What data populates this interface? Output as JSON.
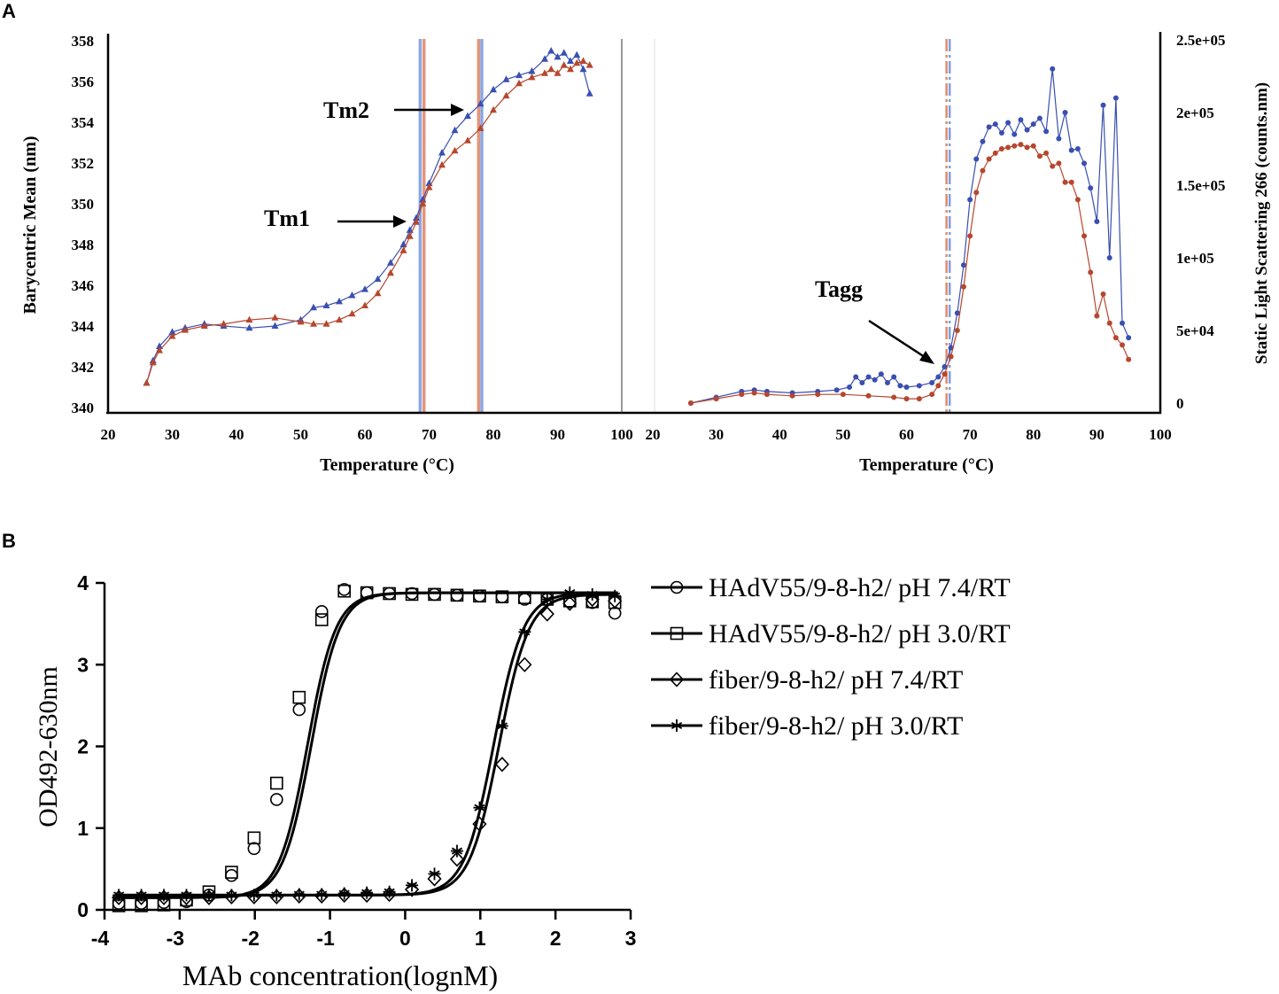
{
  "panel_a": {
    "label": "A",
    "annotations": {
      "tm1": "Tm1",
      "tm2": "Tm2",
      "tagg": "Tagg"
    }
  },
  "panel_b": {
    "label": "B"
  },
  "colors": {
    "blue": "#3a4fb0",
    "red": "#b6472e",
    "tm_blue": "#7f9ee0",
    "tm_orange": "#e08a6c",
    "black": "#000000"
  },
  "chart_data": [
    {
      "id": "barycentric",
      "type": "line",
      "title": "",
      "xlabel": "Temperature (°C)",
      "ylabel": "Barycentric Mean (nm)",
      "xlim": [
        20,
        100
      ],
      "ylim": [
        340,
        358
      ],
      "xticks": [
        20,
        30,
        40,
        50,
        60,
        70,
        80,
        90,
        100
      ],
      "yticks": [
        340,
        342,
        344,
        346,
        348,
        350,
        352,
        354,
        356,
        358
      ],
      "vlines": [
        68.6,
        69.2,
        77.7,
        78.2
      ],
      "series": [
        {
          "name": "blue",
          "marker": "triangle",
          "x": [
            26,
            27,
            28,
            30,
            32,
            35,
            38,
            42,
            46,
            50,
            52,
            54,
            56,
            58,
            60,
            62,
            64,
            66,
            67,
            68,
            69,
            70,
            72,
            74,
            76,
            78,
            80,
            82,
            84,
            86,
            88,
            89,
            90,
            91,
            92,
            93,
            94,
            95
          ],
          "y": [
            341.2,
            342.3,
            343.0,
            343.7,
            343.9,
            344.1,
            344.0,
            343.9,
            344.0,
            344.3,
            344.9,
            345.0,
            345.2,
            345.5,
            345.8,
            346.3,
            347.1,
            348.0,
            348.7,
            349.3,
            350.2,
            351.0,
            352.5,
            353.6,
            354.3,
            354.9,
            355.6,
            356.1,
            356.3,
            356.5,
            357.1,
            357.5,
            357.2,
            357.4,
            357.0,
            357.3,
            356.6,
            355.4
          ]
        },
        {
          "name": "red",
          "marker": "triangle",
          "x": [
            26,
            27,
            28,
            30,
            32,
            35,
            38,
            42,
            46,
            50,
            52,
            54,
            56,
            58,
            60,
            62,
            64,
            66,
            67,
            68,
            69,
            70,
            72,
            74,
            76,
            78,
            80,
            82,
            84,
            86,
            88,
            89,
            90,
            91,
            92,
            93,
            94,
            95
          ],
          "y": [
            341.2,
            342.2,
            342.8,
            343.5,
            343.8,
            344.0,
            344.1,
            344.3,
            344.4,
            344.2,
            344.1,
            344.1,
            344.3,
            344.6,
            345.0,
            345.6,
            346.6,
            347.7,
            348.4,
            349.1,
            350.0,
            350.8,
            351.9,
            352.6,
            353.1,
            353.7,
            354.6,
            355.3,
            355.9,
            356.2,
            356.4,
            356.6,
            356.4,
            356.8,
            356.6,
            356.9,
            357.0,
            356.8
          ]
        }
      ]
    },
    {
      "id": "sls",
      "type": "line",
      "title": "",
      "xlabel": "Temperature (°C)",
      "ylabel": "Static Light Scattering 266 (counts.nm)",
      "xlim": [
        20,
        100
      ],
      "ylim": [
        -5000,
        250000
      ],
      "xticks": [
        20,
        30,
        40,
        50,
        60,
        70,
        80,
        90,
        100
      ],
      "ytick_values": [
        0,
        50000,
        100000,
        150000,
        200000,
        250000
      ],
      "ytick_labels": [
        "0",
        "5e+04",
        "1e+05",
        "1.5e+05",
        "2e+05",
        "2.5e+05"
      ],
      "vlines": [
        66.3,
        66.8
      ],
      "series": [
        {
          "name": "blue",
          "marker": "circle",
          "x": [
            26,
            30,
            34,
            36,
            38,
            42,
            46,
            49,
            51,
            52,
            53,
            54,
            55,
            56,
            57,
            58,
            59,
            60,
            62,
            64,
            65,
            66,
            67,
            68,
            69,
            70,
            71,
            72,
            73,
            74,
            75,
            76,
            77,
            78,
            79,
            80,
            81,
            82,
            83,
            84,
            85,
            86,
            87,
            88,
            89,
            90,
            91,
            92,
            93,
            94,
            95
          ],
          "y": [
            0,
            4000,
            8000,
            9000,
            8000,
            7000,
            8000,
            9000,
            11000,
            18000,
            14000,
            18000,
            16000,
            20000,
            14000,
            18000,
            12000,
            11000,
            12000,
            14000,
            18000,
            25000,
            38000,
            62000,
            95000,
            140000,
            168000,
            180000,
            190000,
            192000,
            186000,
            193000,
            185000,
            195000,
            188000,
            192000,
            196000,
            187000,
            230000,
            182000,
            200000,
            174000,
            175000,
            165000,
            148000,
            125000,
            205000,
            100000,
            210000,
            55000,
            45000
          ]
        },
        {
          "name": "red",
          "marker": "circle",
          "x": [
            26,
            30,
            34,
            36,
            38,
            42,
            46,
            50,
            54,
            58,
            60,
            62,
            64,
            65,
            66,
            67,
            68,
            69,
            70,
            71,
            72,
            73,
            74,
            75,
            76,
            77,
            78,
            79,
            80,
            81,
            82,
            83,
            84,
            85,
            86,
            87,
            88,
            89,
            90,
            91,
            92,
            93,
            94,
            95
          ],
          "y": [
            0,
            3000,
            6000,
            7000,
            6000,
            5000,
            6000,
            6000,
            5000,
            4000,
            3000,
            3000,
            6000,
            12000,
            20000,
            32000,
            50000,
            80000,
            115000,
            145000,
            160000,
            168000,
            172000,
            175000,
            176000,
            177000,
            178000,
            176000,
            177000,
            170000,
            172000,
            163000,
            165000,
            152000,
            152000,
            140000,
            115000,
            90000,
            60000,
            75000,
            55000,
            45000,
            40000,
            30000
          ]
        }
      ]
    },
    {
      "id": "elisa",
      "type": "scatter",
      "title": "",
      "xlabel": "MAb concentration(lognM)",
      "ylabel": "OD492-630nm",
      "xlim": [
        -4,
        3
      ],
      "ylim": [
        0,
        4
      ],
      "xticks": [
        -4,
        -3,
        -2,
        -1,
        0,
        1,
        2,
        3
      ],
      "yticks": [
        0,
        1,
        2,
        3,
        4
      ],
      "x": [
        -3.81,
        -3.51,
        -3.21,
        -2.91,
        -2.61,
        -2.31,
        -2.01,
        -1.71,
        -1.41,
        -1.11,
        -0.81,
        -0.51,
        -0.21,
        0.09,
        0.39,
        0.69,
        0.99,
        1.29,
        1.59,
        1.89,
        2.19,
        2.49,
        2.79
      ],
      "series": [
        {
          "name": "HAdV55/9-8-h2/ pH 7.4/RT",
          "marker": "circle",
          "ec50": -1.3,
          "bottom": 0.15,
          "top": 3.88,
          "hill": 2.3,
          "values": [
            0.08,
            0.08,
            0.09,
            0.1,
            0.18,
            0.42,
            0.75,
            1.35,
            2.45,
            3.65,
            3.92,
            3.88,
            3.87,
            3.87,
            3.86,
            3.85,
            3.84,
            3.83,
            3.8,
            3.8,
            3.77,
            3.76,
            3.63
          ]
        },
        {
          "name": "HAdV55/9-8-h2/ pH 3.0/RT",
          "marker": "square",
          "ec50": -1.25,
          "bottom": 0.15,
          "top": 3.88,
          "hill": 2.3,
          "values": [
            0.05,
            0.05,
            0.06,
            0.12,
            0.22,
            0.46,
            0.88,
            1.55,
            2.6,
            3.55,
            3.9,
            3.88,
            3.87,
            3.86,
            3.86,
            3.85,
            3.84,
            3.83,
            3.82,
            3.8,
            3.78,
            3.77,
            3.76
          ]
        },
        {
          "name": "fiber/9-8-h2/ pH 7.4/RT",
          "marker": "diamond",
          "ec50": 1.25,
          "bottom": 0.18,
          "top": 3.86,
          "hill": 2.2,
          "values": [
            0.15,
            0.15,
            0.15,
            0.15,
            0.15,
            0.16,
            0.16,
            0.16,
            0.17,
            0.17,
            0.18,
            0.18,
            0.19,
            0.25,
            0.38,
            0.62,
            1.05,
            1.78,
            3.0,
            3.62,
            3.75,
            3.8,
            3.78
          ]
        },
        {
          "name": "fiber/9-8-h2/ pH 3.0/RT",
          "marker": "star",
          "ec50": 1.18,
          "bottom": 0.18,
          "top": 3.88,
          "hill": 2.2,
          "values": [
            0.18,
            0.18,
            0.18,
            0.18,
            0.18,
            0.18,
            0.18,
            0.18,
            0.19,
            0.19,
            0.2,
            0.21,
            0.22,
            0.3,
            0.44,
            0.72,
            1.25,
            2.25,
            3.4,
            3.8,
            3.88,
            3.86,
            3.84
          ]
        }
      ]
    }
  ]
}
